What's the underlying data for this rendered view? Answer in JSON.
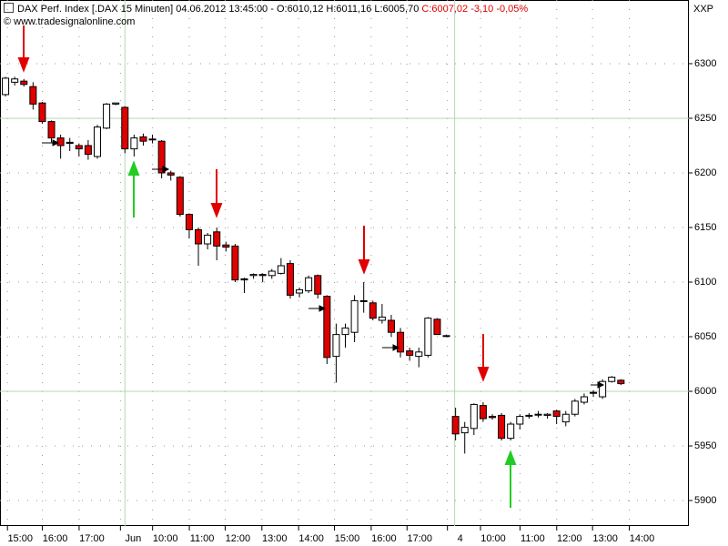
{
  "chart_data": {
    "type": "candlestick",
    "title": "DAX Perf. Index [.DAX  15 Minuten] 04.06.2012 13:45:00 - O:6010,12 H:6011,16 L:6005,70",
    "subtitle": "C:6007,02 -3,10 -0,05%",
    "source": "© www.tradesignalonline.com",
    "symbol": "XXP",
    "open": [
      6271.7,
      6283,
      6284,
      6279,
      6264,
      6247,
      6232,
      6228,
      6225,
      6225,
      6215,
      6241,
      6263,
      6260,
      6222,
      6233,
      6231,
      6229,
      6200,
      6196,
      6162,
      6148,
      6135,
      6146,
      6134,
      6133,
      6103,
      6106,
      6107,
      6106,
      6108,
      6117,
      6090,
      6092,
      6106,
      6087,
      6032,
      6052,
      6054,
      6083,
      6081,
      6065,
      6065,
      6054,
      6037,
      6032,
      6033,
      6066,
      6051,
      5977,
      5962,
      5966,
      5987,
      5977,
      5978,
      5957,
      5970,
      5978,
      5979,
      5978,
      5982,
      5972,
      5979,
      5990,
      5999,
      5995,
      6009,
      6010.12
    ],
    "high": [
      6288,
      6288,
      6286,
      6283,
      6265,
      6248,
      6235,
      6232,
      6227,
      6230,
      6244,
      6264,
      6264,
      6261,
      6235,
      6236,
      6235,
      6230,
      6202,
      6197,
      6163,
      6150,
      6145,
      6150,
      6137,
      6135,
      6104,
      6108,
      6108,
      6112,
      6122,
      6120,
      6095,
      6106,
      6107,
      6088,
      6062,
      6062,
      6088,
      6100,
      6083,
      6080,
      6070,
      6058,
      6040,
      6040,
      6068,
      6067,
      6052,
      5985,
      5972,
      5989,
      5990,
      5979,
      5980,
      5972,
      5979,
      5980,
      5982,
      5980,
      5983,
      5982,
      5993,
      5998,
      6001,
      6011,
      6014,
      6011.16
    ],
    "low": [
      6270,
      6280,
      6279,
      6258,
      6245,
      6228,
      6213,
      6220,
      6215,
      6212,
      6213,
      6240,
      6262,
      6218,
      6215,
      6225,
      6227,
      6195,
      6193,
      6160,
      6140,
      6115,
      6130,
      6120,
      6128,
      6100,
      6090,
      6103,
      6100,
      6103,
      6107,
      6085,
      6086,
      6090,
      6085,
      6025,
      6008,
      6040,
      6045,
      6072,
      6065,
      6062,
      6050,
      6031,
      6028,
      6022,
      6031,
      6052,
      6050,
      5955,
      5943,
      5960,
      5972,
      5974,
      5955,
      5955,
      5965,
      5975,
      5976,
      5975,
      5970,
      5968,
      5977,
      5988,
      5995,
      5993,
      6008,
      6005.7
    ],
    "close": [
      6286.7,
      6286,
      6281,
      6263,
      6247,
      6232,
      6225,
      6227,
      6222,
      6217,
      6242,
      6263,
      6264,
      6222,
      6232,
      6229,
      6231,
      6200,
      6198,
      6162,
      6148,
      6135,
      6143,
      6133,
      6132,
      6102,
      6102,
      6107,
      6106,
      6110,
      6115,
      6088,
      6093,
      6104,
      6089,
      6031,
      6052,
      6058,
      6083,
      6083,
      6067,
      6068,
      6054,
      6036,
      6033,
      6036,
      6067,
      6052,
      6051,
      5961,
      5967,
      5988,
      5975,
      5976,
      5957,
      5970,
      5977,
      5978,
      5979,
      5979,
      5977,
      5979,
      5991,
      5995,
      5999,
      6009,
      6013,
      6007.02
    ],
    "up_color": "#ffffff",
    "down_color": "#e00000",
    "ylim": [
      5876.7,
      6358.3
    ],
    "yticks": [
      5900,
      5950,
      6000,
      6050,
      6100,
      6150,
      6200,
      6250,
      6300
    ],
    "xlim": [
      -0.6,
      74.4
    ],
    "xticks": [
      {
        "value": 1.6,
        "label": "15:00"
      },
      {
        "value": 5.4,
        "label": "16:00"
      },
      {
        "value": 9.4,
        "label": "17:00"
      },
      {
        "value": 13.9,
        "label": "Jun"
      },
      {
        "value": 17.4,
        "label": "10:00"
      },
      {
        "value": 21.4,
        "label": "11:00"
      },
      {
        "value": 25.3,
        "label": "12:00"
      },
      {
        "value": 29.3,
        "label": "13:00"
      },
      {
        "value": 33.3,
        "label": "14:00"
      },
      {
        "value": 37.2,
        "label": "15:00"
      },
      {
        "value": 41.2,
        "label": "16:00"
      },
      {
        "value": 45.1,
        "label": "17:00"
      },
      {
        "value": 49.5,
        "label": "4"
      },
      {
        "value": 53.1,
        "label": "10:00"
      },
      {
        "value": 57.4,
        "label": "11:00"
      },
      {
        "value": 61.4,
        "label": "12:00"
      },
      {
        "value": 65.3,
        "label": "13:00"
      },
      {
        "value": 69.3,
        "label": "14:00"
      }
    ],
    "hlines": [
      6250,
      6000
    ],
    "vlines": [
      13,
      48.9
    ],
    "grid": true
  }
}
